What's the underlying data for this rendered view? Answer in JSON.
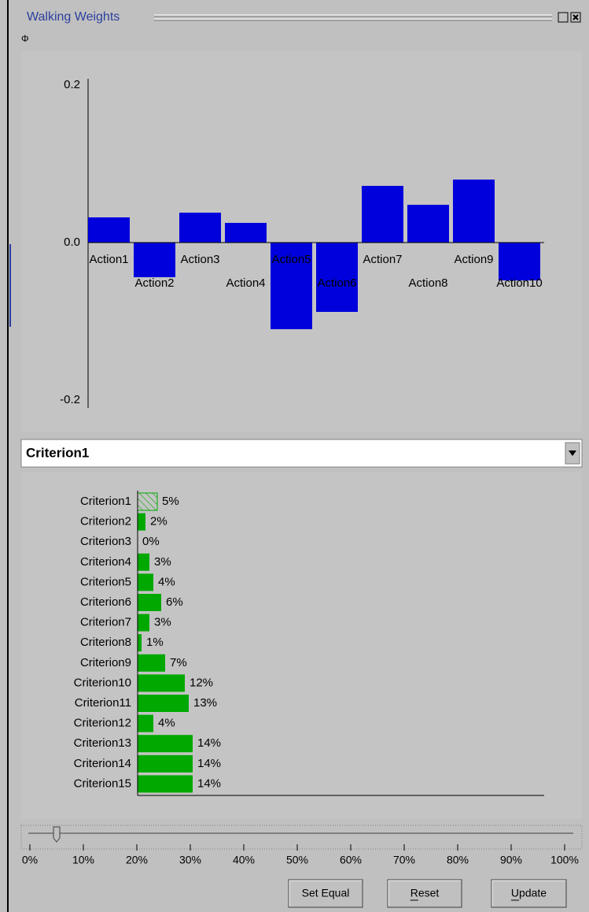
{
  "window": {
    "title": "Walking Weights"
  },
  "chart_data": [
    {
      "type": "bar",
      "categories": [
        "Action1",
        "Action2",
        "Action3",
        "Action4",
        "Action5",
        "Action6",
        "Action7",
        "Action8",
        "Action9",
        "Action10"
      ],
      "values": [
        0.032,
        -0.044,
        0.038,
        0.025,
        -0.11,
        -0.088,
        0.072,
        0.048,
        0.08,
        -0.048
      ],
      "color": "#0000dd",
      "ylim": [
        -0.2,
        0.2
      ],
      "yticks": [
        0.2,
        {
          "value": 0,
          "label": "0.0"
        },
        -0.2
      ]
    },
    {
      "type": "barh",
      "categories": [
        "Criterion1",
        "Criterion2",
        "Criterion3",
        "Criterion4",
        "Criterion5",
        "Criterion6",
        "Criterion7",
        "Criterion8",
        "Criterion9",
        "Criterion10",
        "Criterion11",
        "Criterion12",
        "Criterion13",
        "Criterion14",
        "Criterion15"
      ],
      "values": [
        5,
        2,
        0,
        3,
        4,
        6,
        3,
        1,
        7,
        12,
        13,
        4,
        14,
        14,
        14
      ],
      "value_labels": [
        "5%",
        "2%",
        "0%",
        "3%",
        "4%",
        "6%",
        "3%",
        "1%",
        "7%",
        "12%",
        "13%",
        "4%",
        "14%",
        "14%",
        "14%"
      ],
      "color": "#00a800",
      "xlim": [
        0,
        100
      ]
    }
  ],
  "dropdown": {
    "selected": "Criterion1"
  },
  "slider": {
    "value": 5,
    "xlim": [
      0,
      100
    ],
    "ticks": [
      {
        "value": 0,
        "label": "0%"
      },
      {
        "value": 10,
        "label": "10%"
      },
      {
        "value": 20,
        "label": "20%"
      },
      {
        "value": 30,
        "label": "30%"
      },
      {
        "value": 40,
        "label": "40%"
      },
      {
        "value": 50,
        "label": "50%"
      },
      {
        "value": 60,
        "label": "60%"
      },
      {
        "value": 70,
        "label": "70%"
      },
      {
        "value": 80,
        "label": "80%"
      },
      {
        "value": 90,
        "label": "90%"
      },
      {
        "value": 100,
        "label": "100%"
      }
    ]
  },
  "buttons": [
    "Set Equal",
    "Reset",
    "Update"
  ]
}
